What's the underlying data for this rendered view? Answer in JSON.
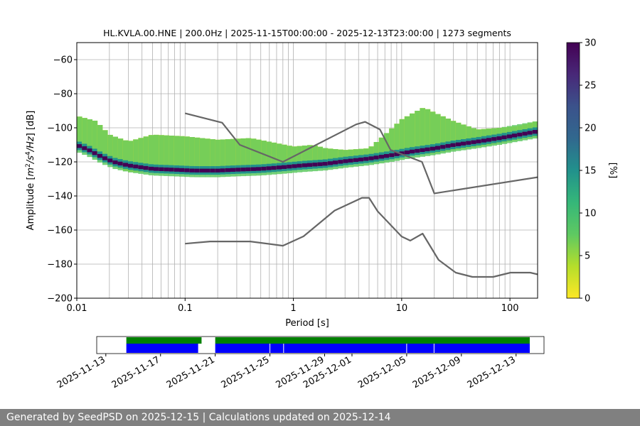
{
  "chart_data": {
    "type": "heatmap",
    "title": "HL.KVLA.00.HNE | 200.0Hz | 2025-11-15T00:00:00 - 2025-12-13T23:00:00 | 1273 segments",
    "xlabel": "Period [s]",
    "ylabel_prefix": "Amplitude [",
    "ylabel_unit_a": "m",
    "ylabel_unit_a_exp": "2",
    "ylabel_unit_b": "/s",
    "ylabel_unit_b_exp": "4",
    "ylabel_unit_c": "/Hz",
    "ylabel_suffix": "] [dB]",
    "x_scale": "log",
    "xlim": [
      0.01,
      180
    ],
    "ylim": [
      -200,
      -50
    ],
    "x_ticks": [
      {
        "value": 0.01,
        "label": "0.01"
      },
      {
        "value": 0.1,
        "label": "0.1"
      },
      {
        "value": 1,
        "label": "1"
      },
      {
        "value": 10,
        "label": "10"
      },
      {
        "value": 100,
        "label": "100"
      }
    ],
    "y_ticks": [
      {
        "value": -60,
        "label": "−60"
      },
      {
        "value": -80,
        "label": "−80"
      },
      {
        "value": -100,
        "label": "−100"
      },
      {
        "value": -120,
        "label": "−120"
      },
      {
        "value": -140,
        "label": "−140"
      },
      {
        "value": -160,
        "label": "−160"
      },
      {
        "value": -180,
        "label": "−180"
      },
      {
        "value": -200,
        "label": "−200"
      }
    ],
    "grid": true,
    "colorbar": {
      "label": "[%]",
      "range": [
        0,
        30
      ],
      "ticks": [
        {
          "value": 0,
          "label": "0"
        },
        {
          "value": 5,
          "label": "5"
        },
        {
          "value": 10,
          "label": "10"
        },
        {
          "value": 15,
          "label": "15"
        },
        {
          "value": 20,
          "label": "20"
        },
        {
          "value": 25,
          "label": "25"
        },
        {
          "value": 30,
          "label": "30"
        }
      ],
      "colormap": "viridis_r",
      "colors": [
        "#fde725",
        "#5ec962",
        "#21918c",
        "#3b528b",
        "#440154"
      ]
    },
    "psd_mode_curve": [
      [
        0.01,
        -110
      ],
      [
        0.013,
        -113
      ],
      [
        0.017,
        -117
      ],
      [
        0.022,
        -120
      ],
      [
        0.03,
        -122
      ],
      [
        0.05,
        -124
      ],
      [
        0.08,
        -124.5
      ],
      [
        0.12,
        -125
      ],
      [
        0.2,
        -125
      ],
      [
        0.3,
        -124.5
      ],
      [
        0.5,
        -124
      ],
      [
        0.8,
        -123
      ],
      [
        1.2,
        -122
      ],
      [
        2,
        -121
      ],
      [
        3,
        -119.5
      ],
      [
        5,
        -118
      ],
      [
        8,
        -116
      ],
      [
        12,
        -114
      ],
      [
        20,
        -112
      ],
      [
        30,
        -110
      ],
      [
        50,
        -108
      ],
      [
        80,
        -106
      ],
      [
        120,
        -104
      ],
      [
        180,
        -102
      ]
    ],
    "psd_upper_band": [
      [
        0.01,
        -93
      ],
      [
        0.015,
        -96
      ],
      [
        0.02,
        -104
      ],
      [
        0.03,
        -108
      ],
      [
        0.05,
        -104
      ],
      [
        0.1,
        -105
      ],
      [
        0.2,
        -107
      ],
      [
        0.4,
        -106
      ],
      [
        0.7,
        -109
      ],
      [
        1,
        -111
      ],
      [
        1.5,
        -110
      ],
      [
        2,
        -112
      ],
      [
        3,
        -113
      ],
      [
        5,
        -112
      ],
      [
        7,
        -104
      ],
      [
        10,
        -95
      ],
      [
        13,
        -91
      ],
      [
        16,
        -88
      ],
      [
        20,
        -91
      ],
      [
        30,
        -96
      ],
      [
        50,
        -101
      ],
      [
        80,
        -100
      ],
      [
        120,
        -99
      ],
      [
        180,
        -96
      ]
    ],
    "psd_lower_band": [
      [
        0.01,
        -112
      ],
      [
        0.015,
        -116
      ],
      [
        0.02,
        -121
      ],
      [
        0.03,
        -126
      ],
      [
        0.05,
        -126
      ],
      [
        0.1,
        -126
      ],
      [
        0.2,
        -126
      ],
      [
        0.4,
        -125.5
      ],
      [
        0.7,
        -125
      ],
      [
        1,
        -124
      ],
      [
        1.5,
        -123
      ],
      [
        2,
        -122.5
      ],
      [
        3,
        -121
      ],
      [
        5,
        -120
      ],
      [
        8,
        -118
      ],
      [
        12,
        -116
      ],
      [
        20,
        -115
      ],
      [
        30,
        -113
      ],
      [
        50,
        -111
      ],
      [
        80,
        -109
      ],
      [
        120,
        -107
      ],
      [
        180,
        -105
      ]
    ],
    "nhnm": [
      [
        0.1,
        -91.5
      ],
      [
        0.22,
        -97
      ],
      [
        0.32,
        -110
      ],
      [
        0.8,
        -120
      ],
      [
        3.8,
        -98
      ],
      [
        4.6,
        -96.5
      ],
      [
        6.3,
        -101
      ],
      [
        7.9,
        -113
      ],
      [
        15.4,
        -120
      ],
      [
        20,
        -138.5
      ],
      [
        180,
        -129
      ]
    ],
    "nlnm": [
      [
        0.1,
        -168
      ],
      [
        0.17,
        -166.7
      ],
      [
        0.4,
        -166.7
      ],
      [
        0.8,
        -169.2
      ],
      [
        1.24,
        -163.7
      ],
      [
        2.4,
        -148.6
      ],
      [
        4.3,
        -141.1
      ],
      [
        5,
        -141.1
      ],
      [
        6,
        -149
      ],
      [
        10,
        -163.8
      ],
      [
        12,
        -166.2
      ],
      [
        15.6,
        -162.1
      ],
      [
        21.9,
        -177.5
      ],
      [
        31.6,
        -185
      ],
      [
        45,
        -187.5
      ],
      [
        70,
        -187.5
      ],
      [
        101,
        -185
      ],
      [
        154,
        -185
      ],
      [
        180,
        -186
      ]
    ]
  },
  "timeline": {
    "x_ticks": [
      {
        "value": "2025-11-13",
        "label": "2025-11-13"
      },
      {
        "value": "2025-11-17",
        "label": "2025-11-17"
      },
      {
        "value": "2025-11-21",
        "label": "2025-11-21"
      },
      {
        "value": "2025-11-25",
        "label": "2025-11-25"
      },
      {
        "value": "2025-11-29",
        "label": "2025-11-29"
      },
      {
        "value": "2025-12-01",
        "label": "2025-12-01"
      },
      {
        "value": "2025-12-05",
        "label": "2025-12-05"
      },
      {
        "value": "2025-12-09",
        "label": "2025-12-09"
      },
      {
        "value": "2025-12-13",
        "label": "2025-12-13"
      }
    ],
    "range": [
      "2025-11-12T08:00",
      "2025-12-15T01:00"
    ],
    "data_available": [
      [
        "2025-11-14T12:00",
        "2025-11-20T00:00"
      ],
      [
        "2025-11-21T00:00",
        "2025-12-14T00:00"
      ]
    ],
    "psd_available": [
      [
        "2025-11-14T12:00",
        "2025-11-19T18:00"
      ],
      [
        "2025-11-21T00:00",
        "2025-12-14T00:00"
      ]
    ],
    "gaps": [
      "2025-11-25T00:00",
      "2025-11-26T00:00",
      "2025-12-05T00:00",
      "2025-12-07T00:00"
    ],
    "colors": {
      "data": "#008000",
      "psd": "#0000ff"
    }
  },
  "footer": {
    "text": "Generated by SeedPSD on 2025-12-15 | Calculations updated on 2025-12-14"
  }
}
